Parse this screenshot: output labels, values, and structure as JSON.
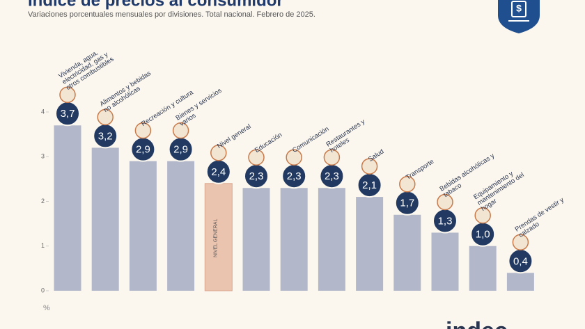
{
  "chart_data": {
    "type": "bar",
    "title": "Índice de precios al consumidor",
    "subtitle": "Variaciones porcentuales mensuales por divisiones. Total nacional. Febrero de 2025.",
    "categories": [
      "Vivienda, agua, electricidad, gas y otros combustibles",
      "Alimentos y bebidas no alcohólicas",
      "Recreación y cultura",
      "Bienes y servicios varios",
      "Nivel general",
      "Educación",
      "Comunicación",
      "Restaurantes y hoteles",
      "Salud",
      "Transporte",
      "Bebidas alcohólicas y tabaco",
      "Equipamiento y mantenimiento del hogar",
      "Prendas de vestir y calzado"
    ],
    "values": [
      3.7,
      3.2,
      2.9,
      2.9,
      2.4,
      2.3,
      2.3,
      2.3,
      2.1,
      1.7,
      1.3,
      1.0,
      0.4
    ],
    "value_labels": [
      "3,7",
      "3,2",
      "2,9",
      "2,9",
      "2,4",
      "2,3",
      "2,3",
      "2,3",
      "2,1",
      "1,7",
      "1,3",
      "1,0",
      "0,4"
    ],
    "colors": [
      "#b2b8ca",
      "#b2b8ca",
      "#b2b8ca",
      "#b2b8ca",
      "#ebc4b0",
      "#b2b8ca",
      "#b2b8ca",
      "#b2b8ca",
      "#b2b8ca",
      "#b2b8ca",
      "#b2b8ca",
      "#b2b8ca",
      "#b2b8ca"
    ],
    "bar_annotation": "NIVEL GENERAL",
    "ylim": [
      0,
      4
    ],
    "yticks": [
      0,
      1,
      2,
      3,
      4
    ],
    "y_unit": "%",
    "logo": "indec"
  }
}
